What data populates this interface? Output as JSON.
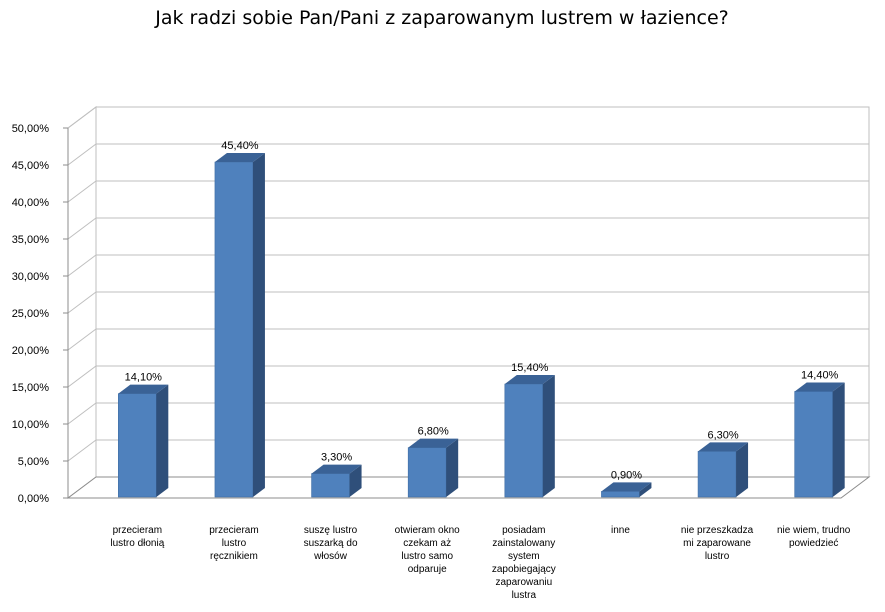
{
  "chart_data": {
    "type": "bar",
    "title": "Jak radzi sobie Pan/Pani z zaparowanym lustrem w łazience?",
    "xlabel": "",
    "ylabel": "",
    "ylim": [
      0,
      50
    ],
    "y_ticks": [
      "0,00%",
      "5,00%",
      "10,00%",
      "15,00%",
      "20,00%",
      "25,00%",
      "30,00%",
      "35,00%",
      "40,00%",
      "45,00%",
      "50,00%"
    ],
    "grid": true,
    "legend": "none",
    "bar_color": "#4F81BD",
    "categories": [
      [
        "przecieram",
        "lustro dłonią"
      ],
      [
        "przecieram",
        "lustro",
        "ręcznikiem"
      ],
      [
        "suszę lustro",
        "suszarką do",
        "włosów"
      ],
      [
        "otwieram okno",
        "czekam aż",
        "lustro samo",
        "odparuje"
      ],
      [
        "posiadam",
        "zainstalowany",
        "system",
        "zapobiegający",
        "zaparowaniu",
        "lustra"
      ],
      [
        "inne"
      ],
      [
        "nie przeszkadza",
        "mi zaparowane",
        "lustro"
      ],
      [
        "nie wiem, trudno",
        "powiedzieć"
      ]
    ],
    "values": [
      14.1,
      45.4,
      3.3,
      6.8,
      15.4,
      0.9,
      6.3,
      14.4
    ],
    "data_labels": [
      "14,10%",
      "45,40%",
      "3,30%",
      "6,80%",
      "15,40%",
      "0,90%",
      "6,30%",
      "14,40%"
    ]
  }
}
